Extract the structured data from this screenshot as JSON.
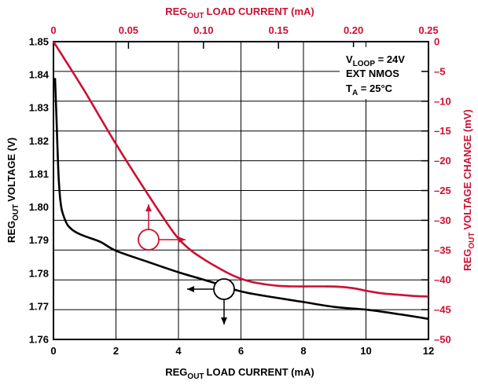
{
  "chart_data": {
    "type": "line",
    "left_axis_label": "VOLTAGE (V)",
    "right_axis_label": "VOLTAGE CHANGE (mV)",
    "bottom_axis_label": "LOAD CURRENT (mA)",
    "top_axis_label": "LOAD CURRENT (mA)",
    "label_prefix": "REG",
    "label_subscript": "OUT",
    "annotation": {
      "line1_main": "V",
      "line1_sub": "LOOP",
      "line1_rest": " = 24V",
      "line2": "EXT NMOS",
      "line3_main": "T",
      "line3_sub": "A",
      "line3_rest": " = 25°C"
    },
    "x_bottom": {
      "range": [
        0,
        12
      ],
      "ticks": [
        0,
        2,
        4,
        6,
        8,
        10,
        12
      ]
    },
    "x_top": {
      "range": [
        0,
        0.25
      ],
      "ticks": [
        0,
        0.05,
        0.1,
        0.15,
        0.2,
        0.25
      ],
      "tick_labels": [
        "0",
        "0.05",
        "0.10",
        "0.15",
        "0.20",
        "0.25"
      ]
    },
    "y_left": {
      "range": [
        1.76,
        1.85
      ],
      "ticks": [
        1.76,
        1.77,
        1.78,
        1.79,
        1.8,
        1.81,
        1.82,
        1.83,
        1.84,
        1.85
      ],
      "tick_labels": [
        "1.76",
        "1.77",
        "1.78",
        "1.79",
        "1.80",
        "1.81",
        "1.82",
        "1.83",
        "1.84",
        "1.85"
      ]
    },
    "y_right": {
      "range": [
        -50,
        0
      ],
      "ticks": [
        0,
        -5,
        -10,
        -15,
        -20,
        -25,
        -30,
        -35,
        -40,
        -45,
        -50
      ],
      "tick_labels": [
        "0",
        "–5",
        "–10",
        "–15",
        "–20",
        "–25",
        "–30",
        "–35",
        "–40",
        "–45",
        "–50"
      ]
    },
    "grid": true,
    "series": [
      {
        "axes": "bottom-left",
        "color": "#000000",
        "x": [
          0.05,
          0.1,
          0.15,
          0.2,
          0.25,
          0.3,
          0.4,
          0.5,
          0.7,
          1,
          1.5,
          2,
          3,
          4,
          5,
          6,
          7,
          8,
          9,
          10,
          11,
          12
        ],
        "y": [
          1.839,
          1.826,
          1.812,
          1.804,
          1.8,
          1.798,
          1.7955,
          1.794,
          1.7925,
          1.7912,
          1.7895,
          1.7868,
          1.7835,
          1.7803,
          1.7775,
          1.7745,
          1.7728,
          1.7713,
          1.7698,
          1.769,
          1.7677,
          1.7662
        ]
      },
      {
        "axes": "top-right",
        "color": "#cc1033",
        "x": [
          0,
          0.02,
          0.04,
          0.06,
          0.08,
          0.09,
          0.1,
          0.11,
          0.12,
          0.13,
          0.14,
          0.15,
          0.16,
          0.17,
          0.18,
          0.19,
          0.2,
          0.21,
          0.22,
          0.23,
          0.24,
          0.25
        ],
        "y": [
          0,
          -8,
          -16.5,
          -24.5,
          -32,
          -34.7,
          -36.5,
          -38,
          -39.3,
          -40.2,
          -40.7,
          -41,
          -41.1,
          -41.1,
          -41.1,
          -41.15,
          -41.4,
          -41.9,
          -42.3,
          -42.5,
          -42.7,
          -42.8
        ]
      }
    ]
  }
}
